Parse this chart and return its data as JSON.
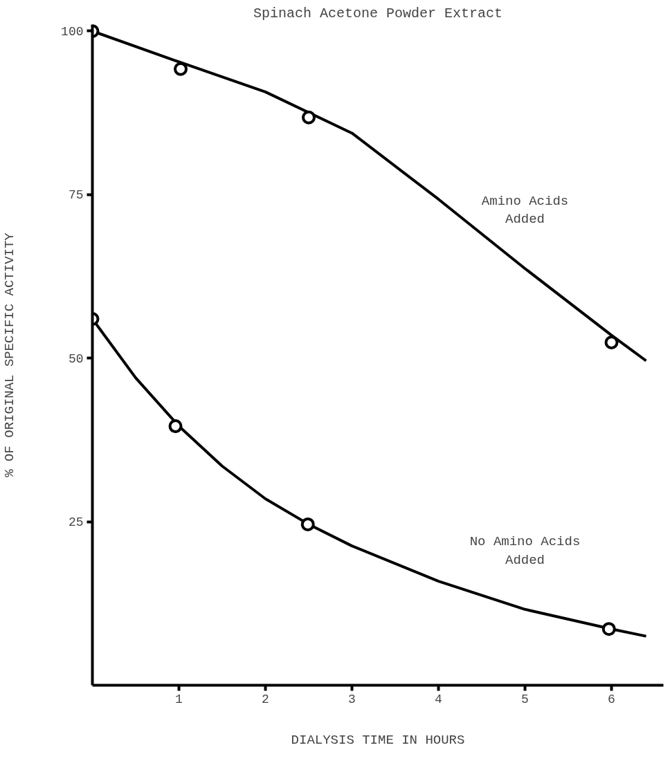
{
  "chart_data": {
    "type": "line",
    "title": "Spinach Acetone Powder Extract",
    "xlabel": "DIALYSIS TIME IN HOURS",
    "ylabel": "% OF ORIGINAL SPECIFIC ACTIVITY",
    "xlim": [
      0,
      6.6
    ],
    "ylim": [
      0,
      101
    ],
    "xticks": [
      1,
      2,
      3,
      4,
      5,
      6
    ],
    "yticks": [
      25,
      50,
      75,
      100
    ],
    "grid": false,
    "marker": "circle",
    "line_style": "solid",
    "series": [
      {
        "name": "Amino Acids Added",
        "marker": "none",
        "color": "#000000",
        "x": [
          0,
          1,
          2,
          3,
          4,
          5,
          6,
          6.4
        ],
        "values": [
          100,
          95.3,
          90.7,
          84.4,
          74.3,
          63.7,
          53.5,
          49.6
        ]
      },
      {
        "type": "scatter",
        "color": "#000000",
        "x": [
          0,
          1.02,
          2.5,
          6.0
        ],
        "values": [
          100,
          94.2,
          86.8,
          52.4
        ]
      },
      {
        "name": "No Amino Acids Added",
        "marker": "none",
        "color": "#000000",
        "x": [
          0,
          0.5,
          1,
          1.5,
          2,
          2.5,
          3,
          4,
          5,
          6,
          6.4
        ],
        "values": [
          56,
          47,
          39.6,
          33.5,
          28.5,
          24.6,
          21.3,
          15.9,
          11.6,
          8.6,
          7.5
        ]
      },
      {
        "type": "scatter",
        "color": "#000000",
        "x": [
          0,
          0.96,
          2.49,
          5.97
        ],
        "values": [
          56,
          39.6,
          24.6,
          8.6
        ]
      }
    ]
  }
}
